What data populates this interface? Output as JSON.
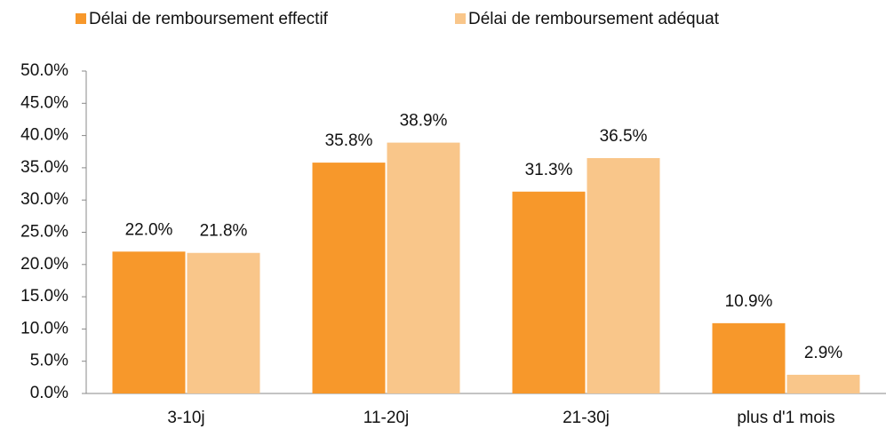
{
  "chart_data": {
    "type": "bar",
    "categories": [
      "3-10j",
      "11-20j",
      "21-30j",
      "plus d'1 mois"
    ],
    "series": [
      {
        "name": "Délai de remboursement effectif",
        "color": "#f7982b",
        "values": [
          22.0,
          35.8,
          31.3,
          10.9
        ],
        "value_labels": [
          "22.0%",
          "35.8%",
          "31.3%",
          "10.9%"
        ]
      },
      {
        "name": "Délai de remboursement adéquat",
        "color": "#f9c68a",
        "values": [
          21.8,
          38.9,
          36.5,
          2.9
        ],
        "value_labels": [
          "21.8%",
          "38.9%",
          "36.5%",
          "2.9%"
        ]
      }
    ],
    "ylim": [
      0,
      50
    ],
    "yticks": [
      {
        "value": 0,
        "label": "0.0%"
      },
      {
        "value": 5,
        "label": "5.0%"
      },
      {
        "value": 10,
        "label": "10.0%"
      },
      {
        "value": 15,
        "label": "15.0%"
      },
      {
        "value": 20,
        "label": "20.0%"
      },
      {
        "value": 25,
        "label": "25.0%"
      },
      {
        "value": 30,
        "label": "30.0%"
      },
      {
        "value": 35,
        "label": "35.0%"
      },
      {
        "value": 40,
        "label": "40.0%"
      },
      {
        "value": 45,
        "label": "45.0%"
      },
      {
        "value": 50,
        "label": "50.0%"
      }
    ],
    "grid": false,
    "legend": "top"
  }
}
